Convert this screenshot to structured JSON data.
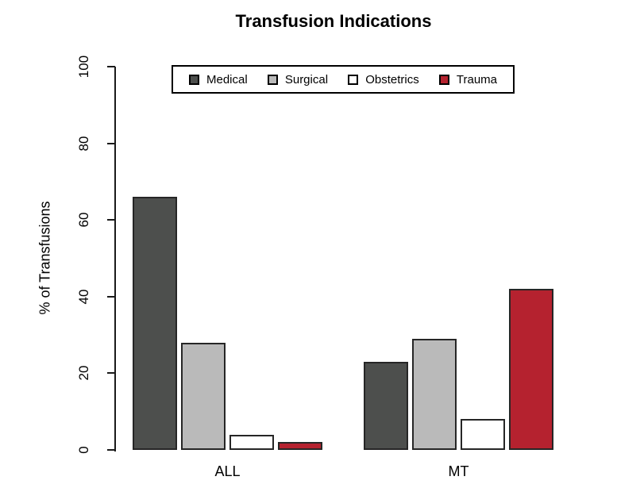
{
  "title": "Transfusion Indications",
  "y_axis": {
    "label": "% of Transfusions",
    "tick_labels": [
      "0",
      "20",
      "40",
      "60",
      "80",
      "100"
    ]
  },
  "x_axis": {
    "group_labels": [
      "ALL",
      "MT"
    ]
  },
  "legend": {
    "labels": [
      "Medical",
      "Surgical",
      "Obstetrics",
      "Trauma"
    ]
  },
  "colors": {
    "medical": "#4D4F4D",
    "surgical": "#BABABA",
    "obstetrics": "#FFFFFF",
    "trauma": "#B5222F",
    "bar_border": "#262626",
    "axis": "#1A1A1A"
  },
  "chart_data": {
    "type": "bar",
    "title": "Transfusion Indications",
    "xlabel": "",
    "ylabel": "% of Transfusions",
    "categories": [
      "ALL",
      "MT"
    ],
    "series": [
      {
        "name": "Medical",
        "color": "#4D4F4D",
        "values": [
          66,
          23
        ]
      },
      {
        "name": "Surgical",
        "color": "#BABABA",
        "values": [
          28,
          29
        ]
      },
      {
        "name": "Obstetrics",
        "color": "#FFFFFF",
        "values": [
          4,
          8
        ]
      },
      {
        "name": "Trauma",
        "color": "#B5222F",
        "values": [
          2,
          42
        ]
      }
    ],
    "ylim": [
      0,
      100
    ],
    "yticks": [
      0,
      20,
      40,
      60,
      80,
      100
    ],
    "grid": false,
    "legend_position": "top-center-inside-box",
    "bar_border_color": "#262626"
  }
}
